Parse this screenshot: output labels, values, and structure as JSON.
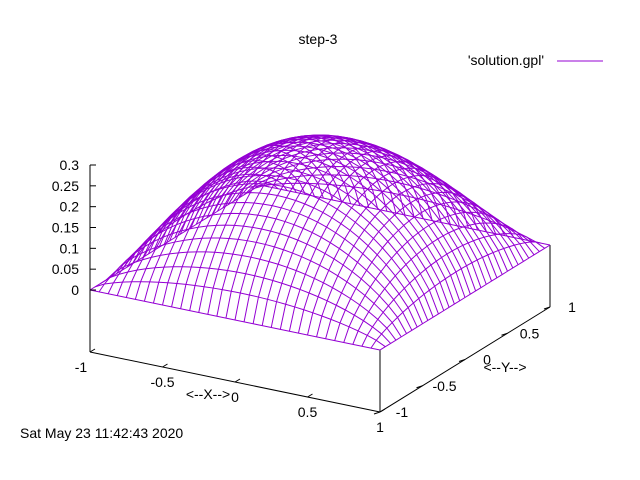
{
  "chart_data": {
    "type": "surface",
    "title": "step-3",
    "xlabel": "<--X-->",
    "ylabel": "<--Y-->",
    "zlabel": "",
    "timestamp": "Sat May 23 11:42:43 2020",
    "legend": {
      "placement": "top-right",
      "entries": [
        {
          "label": "'solution.gpl'",
          "color": "#9400d3"
        }
      ]
    },
    "xlim": [
      -1,
      1
    ],
    "ylim": [
      -1,
      1
    ],
    "zlim": [
      0,
      0.3
    ],
    "ticks": {
      "x": [
        "-1",
        "-0.5",
        "0",
        "0.5",
        "1"
      ],
      "y": [
        "-1",
        "-0.5",
        "0",
        "0.5",
        "1"
      ],
      "z": [
        "0",
        "0.05",
        "0.1",
        "0.15",
        "0.2",
        "0.25",
        "0.3"
      ]
    },
    "grid": false,
    "series": [
      {
        "name": "'solution.gpl'",
        "color": "#9400d3",
        "surface": {
          "x_range": [
            -1,
            1
          ],
          "y_range": [
            -1,
            1
          ],
          "grid_size": 33,
          "peak_z": 0.295,
          "boundary_z": 0
        }
      }
    ]
  }
}
